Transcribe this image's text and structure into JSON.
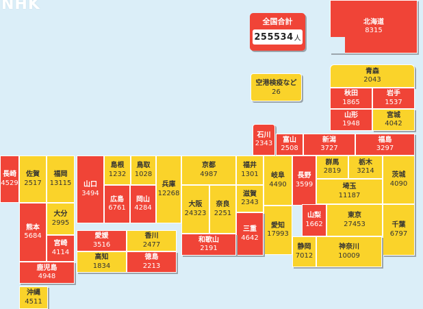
{
  "logo": "NHK",
  "total": {
    "label": "全国合計",
    "value": "255534",
    "unit": "人"
  },
  "airport": {
    "name": "空港検疫など",
    "count": "26"
  },
  "colors": {
    "high": "#f04437",
    "low": "#fad32a",
    "sea": "#dbeef8"
  },
  "prefectures": [
    {
      "id": "hokkaido",
      "name": "北海道",
      "count": "8315",
      "level": "high"
    },
    {
      "id": "aomori",
      "name": "青森",
      "count": "2043",
      "level": "low"
    },
    {
      "id": "akita",
      "name": "秋田",
      "count": "1865",
      "level": "high"
    },
    {
      "id": "iwate",
      "name": "岩手",
      "count": "1537",
      "level": "high"
    },
    {
      "id": "yamagata",
      "name": "山形",
      "count": "1948",
      "level": "high"
    },
    {
      "id": "miyagi",
      "name": "宮城",
      "count": "4042",
      "level": "low"
    },
    {
      "id": "ishikawa",
      "name": "石川",
      "count": "2343",
      "level": "high"
    },
    {
      "id": "toyama",
      "name": "富山",
      "count": "2508",
      "level": "high"
    },
    {
      "id": "niigata",
      "name": "新潟",
      "count": "3727",
      "level": "high"
    },
    {
      "id": "fukushima",
      "name": "福島",
      "count": "3297",
      "level": "high"
    },
    {
      "id": "nagasaki",
      "name": "長崎",
      "count": "4529",
      "level": "high"
    },
    {
      "id": "saga",
      "name": "佐賀",
      "count": "2517",
      "level": "low"
    },
    {
      "id": "fukuoka",
      "name": "福岡",
      "count": "13115",
      "level": "low"
    },
    {
      "id": "yamaguchi",
      "name": "山口",
      "count": "3494",
      "level": "high"
    },
    {
      "id": "shimane",
      "name": "島根",
      "count": "1232",
      "level": "low"
    },
    {
      "id": "tottori",
      "name": "鳥取",
      "count": "1028",
      "level": "low"
    },
    {
      "id": "hyogo",
      "name": "兵庫",
      "count": "12268",
      "level": "low"
    },
    {
      "id": "kyoto",
      "name": "京都",
      "count": "4987",
      "level": "low"
    },
    {
      "id": "fukui",
      "name": "福井",
      "count": "1301",
      "level": "low"
    },
    {
      "id": "gifu",
      "name": "岐阜",
      "count": "4490",
      "level": "low"
    },
    {
      "id": "nagano",
      "name": "長野",
      "count": "3599",
      "level": "high"
    },
    {
      "id": "gunma",
      "name": "群馬",
      "count": "2819",
      "level": "low"
    },
    {
      "id": "tochigi",
      "name": "栃木",
      "count": "3214",
      "level": "low"
    },
    {
      "id": "ibaraki",
      "name": "茨城",
      "count": "4090",
      "level": "low"
    },
    {
      "id": "saitama",
      "name": "埼玉",
      "count": "11187",
      "level": "low"
    },
    {
      "id": "hiroshima",
      "name": "広島",
      "count": "6761",
      "level": "high"
    },
    {
      "id": "okayama",
      "name": "岡山",
      "count": "4284",
      "level": "high"
    },
    {
      "id": "osaka",
      "name": "大阪",
      "count": "24323",
      "level": "low"
    },
    {
      "id": "nara",
      "name": "奈良",
      "count": "2251",
      "level": "low"
    },
    {
      "id": "shiga",
      "name": "滋賀",
      "count": "2343",
      "level": "low"
    },
    {
      "id": "oita",
      "name": "大分",
      "count": "2995",
      "level": "low"
    },
    {
      "id": "kumamoto",
      "name": "熊本",
      "count": "5684",
      "level": "high"
    },
    {
      "id": "miyazaki",
      "name": "宮崎",
      "count": "4114",
      "level": "high"
    },
    {
      "id": "aichi",
      "name": "愛知",
      "count": "17993",
      "level": "low"
    },
    {
      "id": "yamanashi",
      "name": "山梨",
      "count": "1662",
      "level": "high"
    },
    {
      "id": "tokyo",
      "name": "東京",
      "count": "27453",
      "level": "low"
    },
    {
      "id": "chiba",
      "name": "千葉",
      "count": "6797",
      "level": "low"
    },
    {
      "id": "ehime",
      "name": "愛媛",
      "count": "3516",
      "level": "high"
    },
    {
      "id": "kagawa",
      "name": "香川",
      "count": "2477",
      "level": "low"
    },
    {
      "id": "mie",
      "name": "三重",
      "count": "4642",
      "level": "high"
    },
    {
      "id": "wakayama",
      "name": "和歌山",
      "count": "2191",
      "level": "high"
    },
    {
      "id": "kochi",
      "name": "高知",
      "count": "1834",
      "level": "low"
    },
    {
      "id": "tokushima",
      "name": "徳島",
      "count": "2213",
      "level": "high"
    },
    {
      "id": "shizuoka",
      "name": "静岡",
      "count": "7012",
      "level": "low"
    },
    {
      "id": "kanagawa",
      "name": "神奈川",
      "count": "10009",
      "level": "low"
    },
    {
      "id": "kagoshima",
      "name": "鹿児島",
      "count": "4948",
      "level": "high"
    },
    {
      "id": "okinawa",
      "name": "沖縄",
      "count": "4511",
      "level": "low"
    }
  ]
}
